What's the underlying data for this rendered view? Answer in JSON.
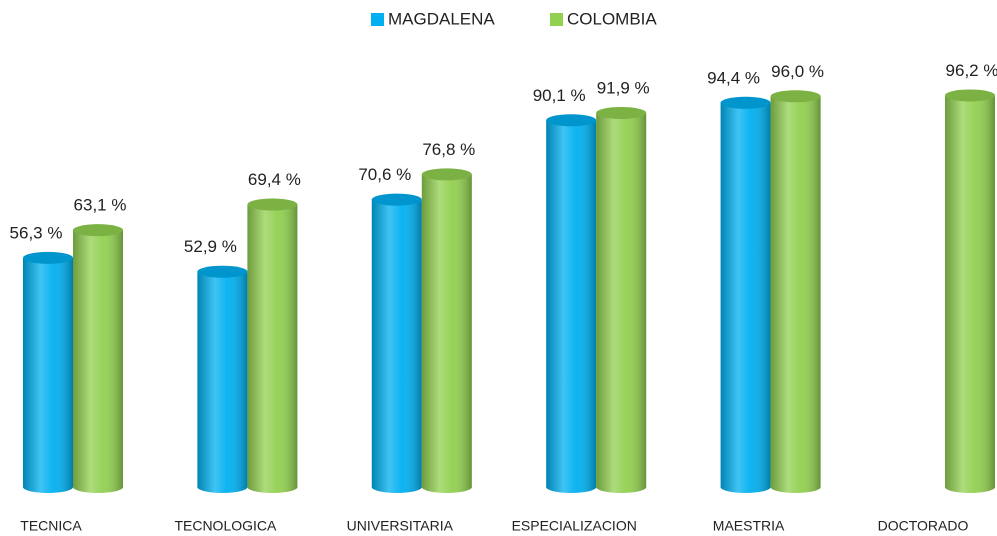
{
  "chart_data": {
    "type": "bar",
    "categories": [
      "TECNICA",
      "TECNOLOGICA",
      "UNIVERSITARIA",
      "ESPECIALIZACION",
      "MAESTRIA",
      "DOCTORADO"
    ],
    "series": [
      {
        "name": "MAGDALENA",
        "color": "#00b0f0",
        "values": [
          56.3,
          52.9,
          70.6,
          90.1,
          94.4,
          null
        ],
        "value_labels": [
          "56,3 %",
          "52,9 %",
          "70,6 %",
          "90,1 %",
          "94,4 %",
          null
        ]
      },
      {
        "name": "COLOMBIA",
        "color": "#92d050",
        "values": [
          63.1,
          69.4,
          76.8,
          91.9,
          96.0,
          96.2
        ],
        "value_labels": [
          "63,1 %",
          "69,4 %",
          "76,8 %",
          "91,9 %",
          "96,0 %",
          "96,2 %"
        ]
      }
    ],
    "ylim": [
      0,
      100
    ]
  }
}
